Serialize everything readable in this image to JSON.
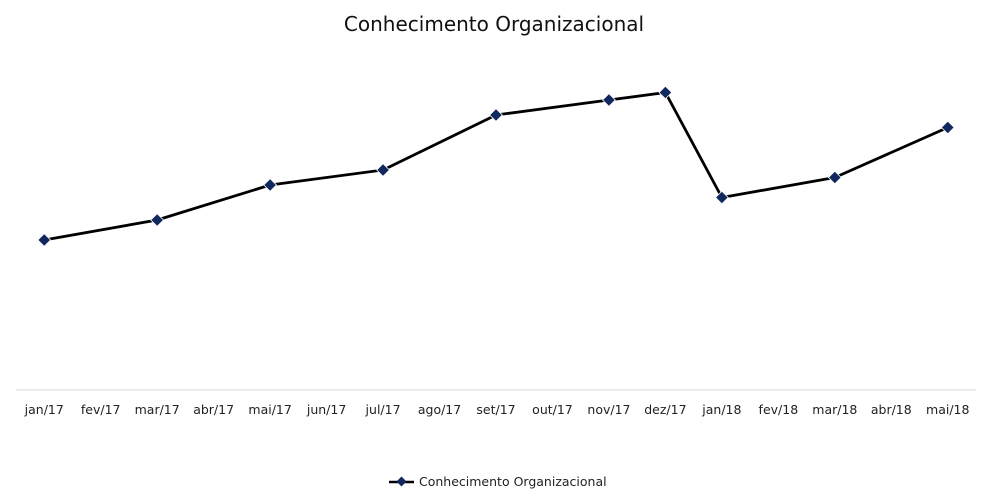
{
  "chart_data": {
    "type": "line",
    "title": "Conhecimento Organizacional",
    "xlabel": "",
    "ylabel": "",
    "categories": [
      "jan/17",
      "fev/17",
      "mar/17",
      "abr/17",
      "mai/17",
      "jun/17",
      "jul/17",
      "ago/17",
      "set/17",
      "out/17",
      "nov/17",
      "dez/17",
      "jan/18",
      "fev/18",
      "mar/18",
      "abr/18",
      "mai/18"
    ],
    "x": [
      "jan/17",
      "mar/17",
      "mai/17",
      "jul/17",
      "set/17",
      "nov/17",
      "dez/17",
      "jan/18",
      "mar/18",
      "mai/18"
    ],
    "series": [
      {
        "name": "Conhecimento Organizacional",
        "values": [
          3.0,
          3.4,
          4.1,
          4.4,
          5.5,
          5.8,
          5.95,
          3.85,
          4.25,
          5.25
        ]
      }
    ],
    "ylim": [
      0,
      7
    ],
    "grid": false,
    "legend_position": "bottom",
    "colors": {
      "line": "#000000",
      "marker": "#10285e",
      "axis": "#d9d9d9"
    }
  }
}
